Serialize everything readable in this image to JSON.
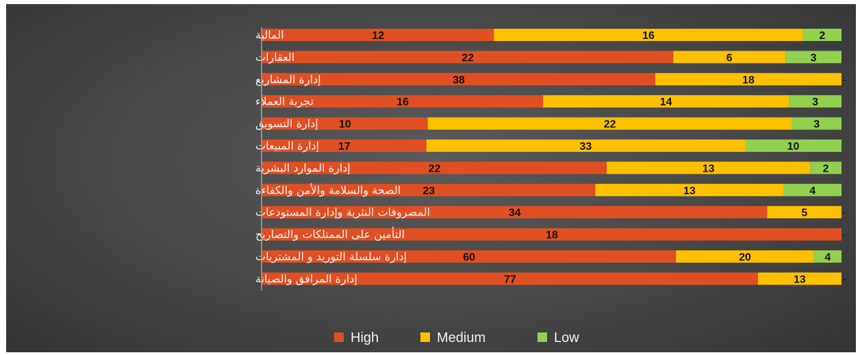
{
  "chart_data": {
    "type": "bar",
    "orientation": "horizontal",
    "stacked": "percent",
    "title": "",
    "xlabel": "",
    "ylabel": "",
    "categories": [
      "المالية",
      "العقارات",
      "إدارة المشاريع",
      "تجربة العملاء",
      "إدارة التسويق",
      "إدارة المبيعات",
      "إدارة الموارد البشرية",
      "الصحة والسلامة والأمن والكفاءة",
      "المصروفات النثرية وإدارة المستودعات",
      "التأمين على الممتلكات والتصاريح",
      "إدارة سلسلة التوريد و المشتريات",
      "إدارة المرافق والصيانة"
    ],
    "series": [
      {
        "name": "High",
        "color": "#e04f22",
        "values": [
          12,
          22,
          38,
          16,
          10,
          17,
          22,
          23,
          34,
          18,
          60,
          77
        ]
      },
      {
        "name": "Medium",
        "color": "#ffc000",
        "values": [
          16,
          6,
          18,
          14,
          22,
          33,
          13,
          13,
          5,
          0,
          20,
          13
        ]
      },
      {
        "name": "Low",
        "color": "#92d050",
        "values": [
          2,
          3,
          0,
          3,
          3,
          10,
          2,
          4,
          0,
          0,
          4,
          0
        ]
      }
    ],
    "zero_label": "-",
    "legend_position": "bottom",
    "grid": false
  }
}
